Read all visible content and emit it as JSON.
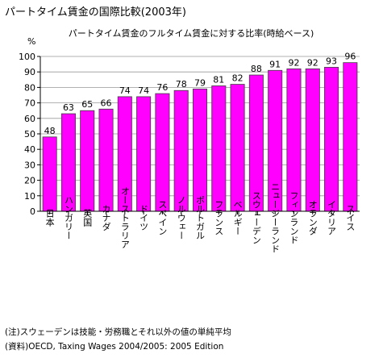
{
  "page": {
    "title": "パートタイム賃金の国際比較(2003年)",
    "notes": [
      "(注)スウェーデンは技能・労務職とそれ以外の値の単純平均",
      "(資料)OECD, Taxing Wages 2004/2005: 2005 Edition"
    ]
  },
  "chart_data": {
    "type": "bar",
    "title": "パートタイム賃金のフルタイム賃金に対する比率(時給ベース)",
    "ylabel": "%",
    "xlabel": "",
    "ylim": [
      0,
      100
    ],
    "ytick_step": 10,
    "grid": true,
    "legend": "none",
    "bar_color": "#ff00ff",
    "bar_edge_color": "#404040",
    "categories": [
      "日本",
      "ハンガリー",
      "英国",
      "カナダ",
      "オーストラリア",
      "ドイツ",
      "スペイン",
      "ノルウェー",
      "ポルトガル",
      "フランス",
      "ベルギー",
      "スウェーデン",
      "ニュージーランド",
      "フィンランド",
      "オランダ",
      "イタリア",
      "スイス"
    ],
    "values": [
      48,
      63,
      65,
      66,
      74,
      74,
      76,
      78,
      79,
      81,
      82,
      88,
      91,
      92,
      92,
      93,
      96
    ]
  }
}
